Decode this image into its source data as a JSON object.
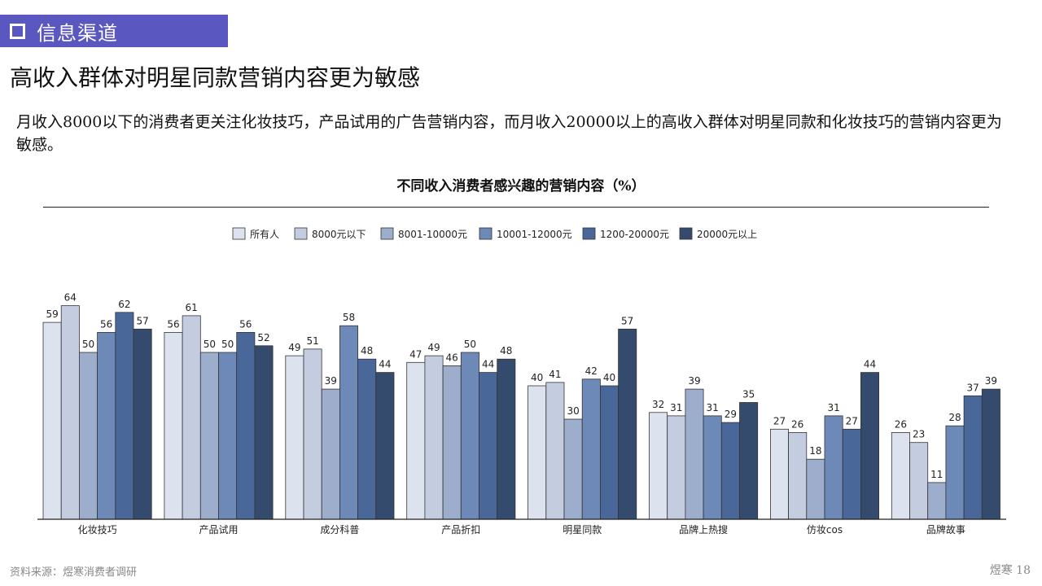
{
  "section": {
    "label": "信息渠道"
  },
  "headline": "高收入群体对明星同款营销内容更为敏感",
  "description": "月收入8000以下的消费者更关注化妆技巧，产品试用的广告营销内容，而月收入20000以上的高收入群体对明星同款和化妆技巧的营销内容更为敏感。",
  "footer": {
    "source": "资料来源：煜寒消费者调研",
    "brand": "煜寒",
    "page": "18"
  },
  "chart_data": {
    "type": "bar",
    "title": "不同收入消费者感兴趣的营销内容（%）",
    "categories": [
      "化妆技巧",
      "产品试用",
      "成分科普",
      "产品折扣",
      "明星同款",
      "品牌上热搜",
      "仿妆cos",
      "品牌故事"
    ],
    "series": [
      {
        "name": "所有人",
        "color": "#dde3ee",
        "values": [
          59,
          56,
          49,
          47,
          40,
          32,
          27,
          26
        ]
      },
      {
        "name": "8000元以下",
        "color": "#c4cde0",
        "values": [
          64,
          61,
          51,
          49,
          41,
          31,
          26,
          23
        ]
      },
      {
        "name": "8001-10000元",
        "color": "#9dadcc",
        "values": [
          50,
          50,
          39,
          46,
          30,
          39,
          18,
          11
        ]
      },
      {
        "name": "10001-12000元",
        "color": "#6c89b8",
        "values": [
          56,
          50,
          58,
          50,
          42,
          31,
          31,
          28
        ]
      },
      {
        "name": "1200-20000元",
        "color": "#4a6799",
        "values": [
          62,
          56,
          48,
          44,
          40,
          29,
          27,
          37
        ]
      },
      {
        "name": "20000元以上",
        "color": "#354b6e",
        "values": [
          57,
          52,
          44,
          48,
          57,
          35,
          44,
          39
        ]
      }
    ],
    "ylim": [
      0,
      70
    ],
    "grid": false,
    "legend_position": "top-center",
    "data_labels": true
  }
}
